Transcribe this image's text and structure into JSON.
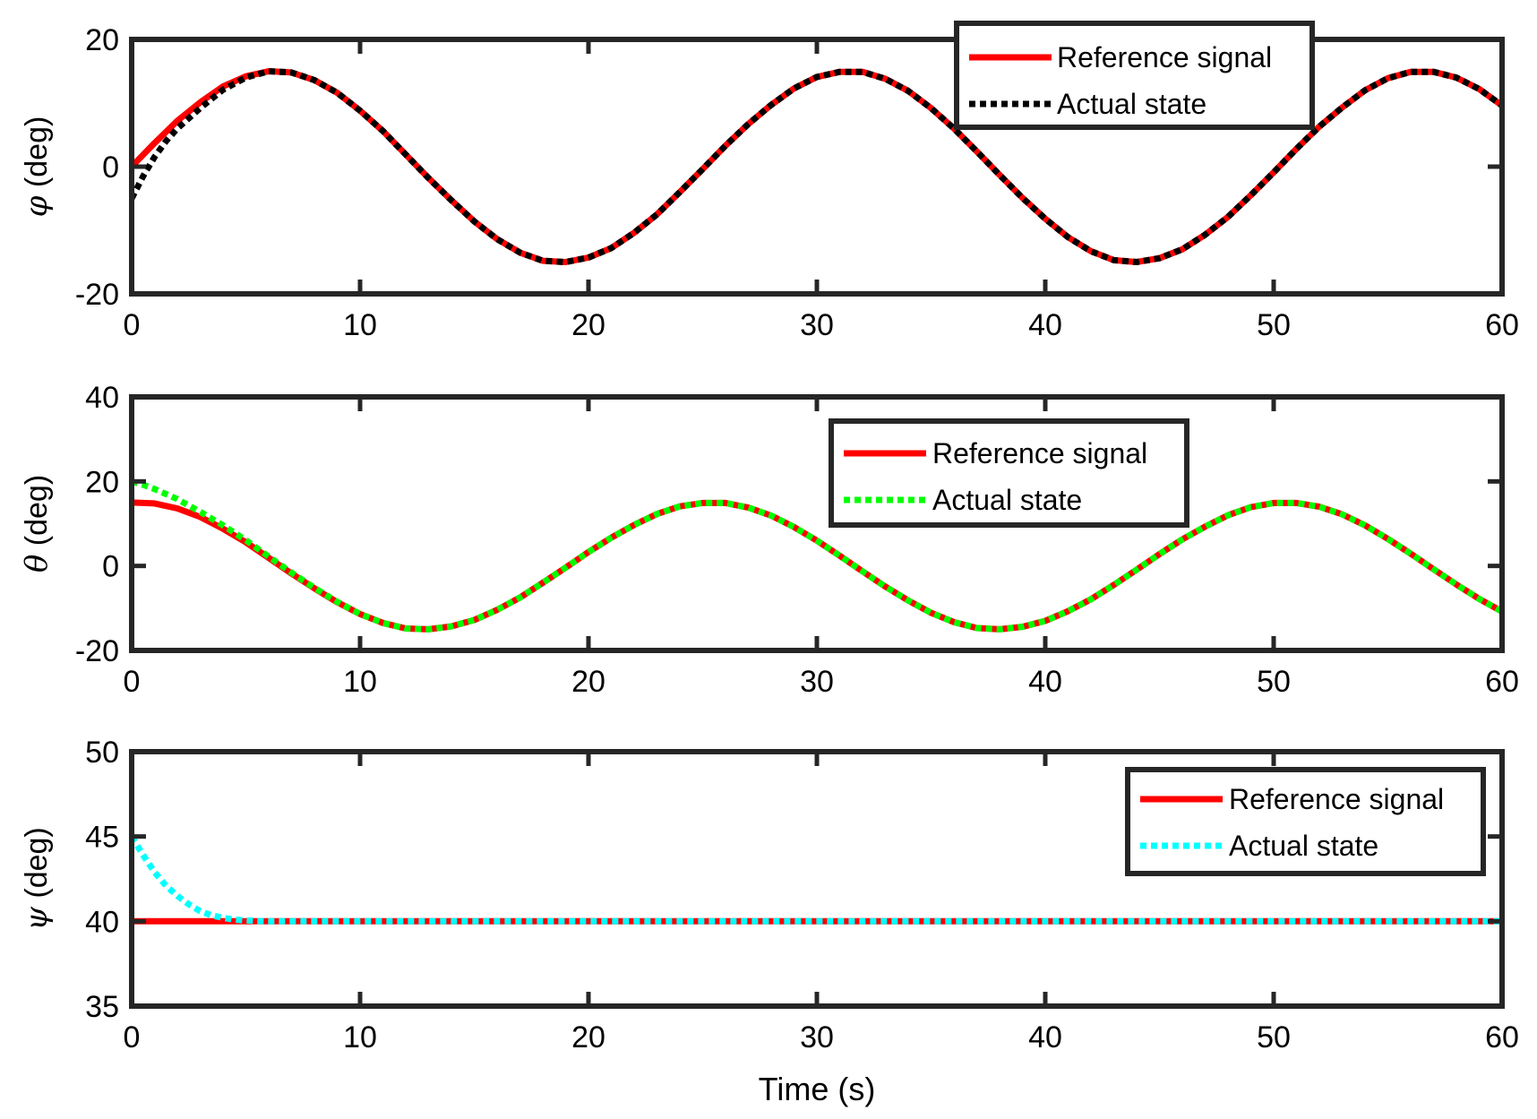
{
  "chart_data": [
    {
      "type": "line",
      "ylabel_symbol": "φ",
      "ylabel_unit": " (deg)",
      "xlim": [
        0,
        60
      ],
      "ylim": [
        -20,
        20
      ],
      "xticks": [
        0,
        10,
        20,
        30,
        40,
        50,
        60
      ],
      "yticks": [
        -20,
        0,
        20
      ],
      "legend_position": "top-right",
      "series": [
        {
          "name": "Reference signal",
          "color": "#ff0000",
          "style": "solid",
          "x": [
            0,
            1,
            2,
            3,
            4,
            5,
            6,
            7,
            8,
            9,
            10,
            11,
            12,
            13,
            14,
            15,
            16,
            17,
            18,
            19,
            20,
            21,
            22,
            23,
            24,
            25,
            26,
            27,
            28,
            29,
            30,
            31,
            32,
            33,
            34,
            35,
            36,
            37,
            38,
            39,
            40,
            41,
            42,
            43,
            44,
            45,
            46,
            47,
            48,
            49,
            50,
            51,
            52,
            53,
            54,
            55,
            56,
            57,
            58,
            59,
            60
          ],
          "y": [
            0,
            3.7,
            7.2,
            10.1,
            12.6,
            14.2,
            15.0,
            14.8,
            13.6,
            11.6,
            8.8,
            5.6,
            1.9,
            -1.8,
            -5.3,
            -8.6,
            -11.4,
            -13.5,
            -14.8,
            -15.0,
            -14.3,
            -12.8,
            -10.4,
            -7.5,
            -4.0,
            -0.4,
            3.3,
            6.7,
            9.7,
            12.3,
            14.1,
            14.9,
            14.9,
            13.8,
            11.9,
            9.2,
            6.0,
            2.4,
            -1.3,
            -4.9,
            -8.2,
            -11.1,
            -13.3,
            -14.7,
            -15.0,
            -14.4,
            -13.0,
            -10.7,
            -7.9,
            -4.5,
            -0.9,
            2.8,
            6.3,
            9.3,
            12.0,
            13.9,
            14.9,
            14.9,
            14.0,
            12.2,
            9.6
          ]
        },
        {
          "name": "Actual state",
          "color": "#000000",
          "style": "dotted",
          "x": [
            0,
            0.5,
            1,
            1.5,
            2,
            3,
            4,
            5,
            6,
            7,
            8,
            9,
            10,
            11,
            12,
            13,
            14,
            15,
            16,
            17,
            18,
            19,
            20,
            21,
            22,
            23,
            24,
            25,
            26,
            27,
            28,
            29,
            30,
            31,
            32,
            33,
            34,
            35,
            36,
            37,
            38,
            39,
            40,
            41,
            42,
            43,
            44,
            45,
            46,
            47,
            48,
            49,
            50,
            51,
            52,
            53,
            54,
            55,
            56,
            57,
            58,
            59,
            60
          ],
          "y": [
            -5,
            -1.5,
            1.5,
            4.0,
            6.0,
            9.2,
            12.1,
            14.0,
            15.0,
            14.8,
            13.6,
            11.6,
            8.8,
            5.6,
            1.9,
            -1.8,
            -5.3,
            -8.6,
            -11.4,
            -13.5,
            -14.8,
            -15.0,
            -14.3,
            -12.8,
            -10.4,
            -7.5,
            -4.0,
            -0.4,
            3.3,
            6.7,
            9.7,
            12.3,
            14.1,
            14.9,
            14.9,
            13.8,
            11.9,
            9.2,
            6.0,
            2.4,
            -1.3,
            -4.9,
            -8.2,
            -11.1,
            -13.3,
            -14.7,
            -15.0,
            -14.4,
            -13.0,
            -10.7,
            -7.9,
            -4.5,
            -0.9,
            2.8,
            6.3,
            9.3,
            12.0,
            13.9,
            14.9,
            14.9,
            14.0,
            12.2,
            9.6
          ]
        }
      ]
    },
    {
      "type": "line",
      "ylabel_symbol": "θ",
      "ylabel_unit": " (deg)",
      "xlim": [
        0,
        60
      ],
      "ylim": [
        -20,
        40
      ],
      "xticks": [
        0,
        10,
        20,
        30,
        40,
        50,
        60
      ],
      "yticks": [
        -20,
        0,
        20,
        40
      ],
      "legend_position": "top-center",
      "series": [
        {
          "name": "Reference signal",
          "color": "#ff0000",
          "style": "solid",
          "x": [
            0,
            1,
            2,
            3,
            4,
            5,
            6,
            7,
            8,
            9,
            10,
            11,
            12,
            13,
            14,
            15,
            16,
            17,
            18,
            19,
            20,
            21,
            22,
            23,
            24,
            25,
            26,
            27,
            28,
            29,
            30,
            31,
            32,
            33,
            34,
            35,
            36,
            37,
            38,
            39,
            40,
            41,
            42,
            43,
            44,
            45,
            46,
            47,
            48,
            49,
            50,
            51,
            52,
            53,
            54,
            55,
            56,
            57,
            58,
            59,
            60
          ],
          "y": [
            15.0,
            14.8,
            13.6,
            11.6,
            8.8,
            5.6,
            1.9,
            -1.8,
            -5.3,
            -8.6,
            -11.4,
            -13.5,
            -14.8,
            -15.0,
            -14.3,
            -12.8,
            -10.4,
            -7.5,
            -4.0,
            -0.4,
            3.3,
            6.7,
            9.7,
            12.3,
            14.1,
            14.9,
            14.9,
            13.8,
            11.9,
            9.2,
            6.0,
            2.4,
            -1.3,
            -4.9,
            -8.2,
            -11.1,
            -13.3,
            -14.7,
            -15.0,
            -14.4,
            -13.0,
            -10.7,
            -7.9,
            -4.5,
            -0.9,
            2.8,
            6.3,
            9.3,
            12.0,
            13.9,
            14.9,
            14.9,
            14.0,
            12.2,
            9.6,
            6.4,
            2.9,
            -0.8,
            -4.4,
            -7.8,
            -10.8
          ]
        },
        {
          "name": "Actual state",
          "color": "#00ff00",
          "style": "dotted",
          "x": [
            0,
            0.5,
            1,
            2,
            3,
            4,
            5,
            6,
            7,
            8,
            9,
            10,
            11,
            12,
            13,
            14,
            15,
            16,
            17,
            18,
            19,
            20,
            21,
            22,
            23,
            24,
            25,
            26,
            27,
            28,
            29,
            30,
            31,
            32,
            33,
            34,
            35,
            36,
            37,
            38,
            39,
            40,
            41,
            42,
            43,
            44,
            45,
            46,
            47,
            48,
            49,
            50,
            51,
            52,
            53,
            54,
            55,
            56,
            57,
            58,
            59,
            60
          ],
          "y": [
            20,
            19.2,
            18.2,
            15.8,
            12.8,
            9.6,
            6.1,
            2.2,
            -1.6,
            -5.2,
            -8.5,
            -11.4,
            -13.5,
            -14.8,
            -15.0,
            -14.3,
            -12.8,
            -10.4,
            -7.5,
            -4.0,
            -0.4,
            3.3,
            6.7,
            9.7,
            12.3,
            14.1,
            14.9,
            14.9,
            13.8,
            11.9,
            9.2,
            6.0,
            2.4,
            -1.3,
            -4.9,
            -8.2,
            -11.1,
            -13.3,
            -14.7,
            -15.0,
            -14.4,
            -13.0,
            -10.7,
            -7.9,
            -4.5,
            -0.9,
            2.8,
            6.3,
            9.3,
            12.0,
            13.9,
            14.9,
            14.9,
            14.0,
            12.2,
            9.6,
            6.4,
            2.9,
            -0.8,
            -4.4,
            -7.8,
            -10.8
          ]
        }
      ]
    },
    {
      "type": "line",
      "ylabel_symbol": "ψ",
      "ylabel_unit": " (deg)",
      "xlabel": "Time (s)",
      "xlim": [
        0,
        60
      ],
      "ylim": [
        35,
        50
      ],
      "xticks": [
        0,
        10,
        20,
        30,
        40,
        50,
        60
      ],
      "yticks": [
        35,
        40,
        45,
        50
      ],
      "legend_position": "top-right",
      "series": [
        {
          "name": "Reference signal",
          "color": "#ff0000",
          "style": "solid",
          "x": [
            0,
            60
          ],
          "y": [
            40,
            40
          ]
        },
        {
          "name": "Actual state",
          "color": "#00ffff",
          "style": "dotted",
          "x": [
            0,
            0.5,
            1,
            1.5,
            2,
            2.5,
            3,
            3.5,
            4,
            4.5,
            5,
            5.5,
            6,
            60
          ],
          "y": [
            45,
            43.9,
            42.9,
            42.1,
            41.5,
            41.0,
            40.6,
            40.35,
            40.2,
            40.1,
            40.05,
            40.02,
            40.0,
            40.0
          ]
        }
      ]
    }
  ]
}
